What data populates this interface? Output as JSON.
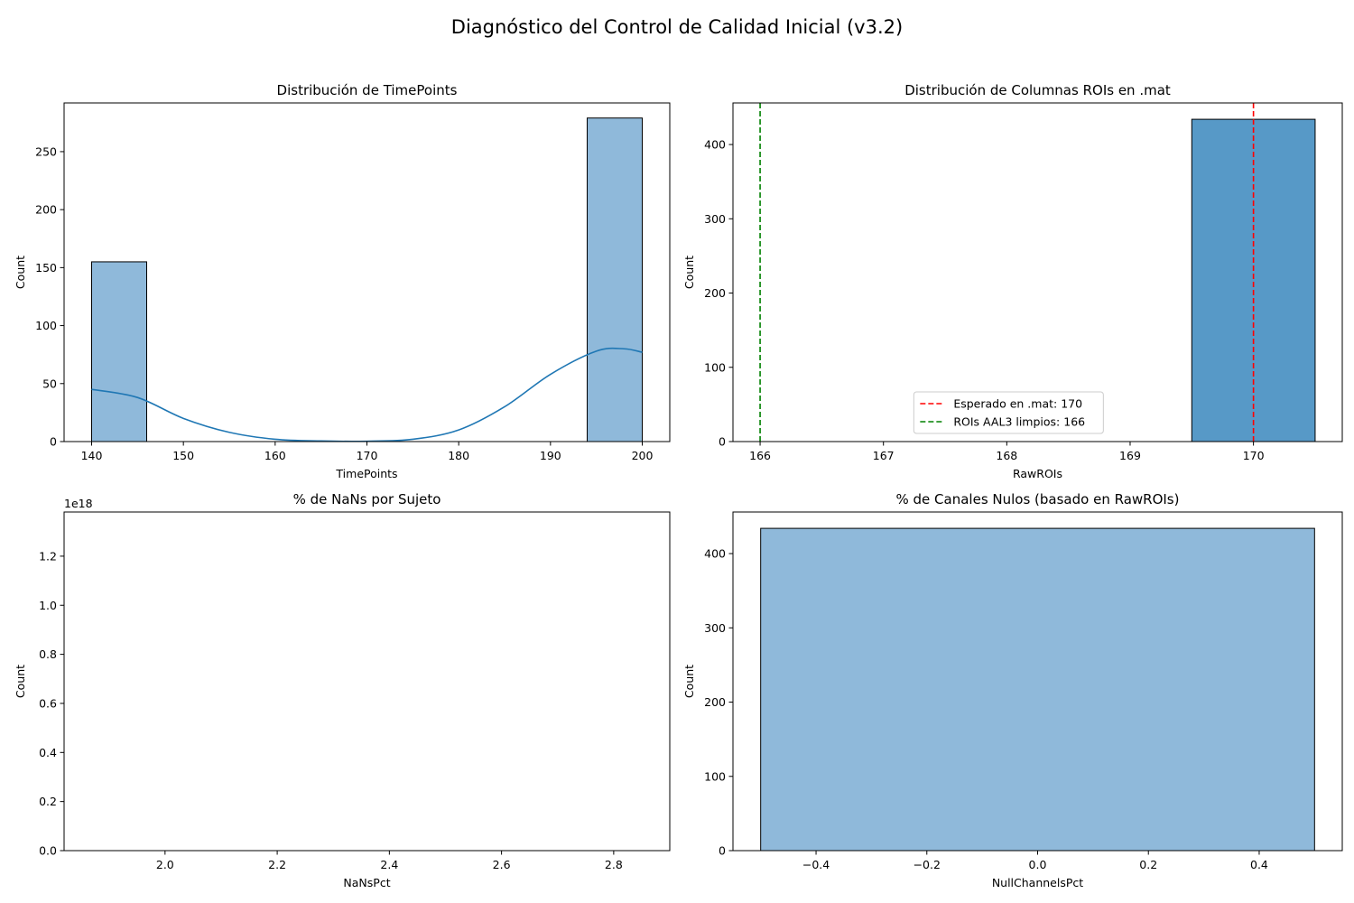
{
  "figure": {
    "title": "Diagnóstico del Control de Calidad Inicial (v3.2)"
  },
  "chart_data": [
    {
      "type": "bar",
      "title": "Distribución de TimePoints",
      "xlabel": "TimePoints",
      "ylabel": "Count",
      "xlim": [
        137,
        203
      ],
      "ylim": [
        0,
        292
      ],
      "xticks": [
        140,
        150,
        160,
        170,
        180,
        190,
        200
      ],
      "yticks": [
        0,
        50,
        100,
        150,
        200,
        250
      ],
      "bars": [
        {
          "x0": 140,
          "x1": 146,
          "value": 155
        },
        {
          "x0": 194,
          "x1": 200,
          "value": 279
        }
      ],
      "kde": {
        "x": [
          140,
          145,
          150,
          155,
          160,
          165,
          170,
          175,
          180,
          185,
          190,
          195,
          198,
          200
        ],
        "y": [
          45,
          38,
          20,
          8,
          2,
          0.5,
          0.3,
          2,
          10,
          30,
          58,
          78,
          80,
          77
        ]
      },
      "bar_color": "#8fb9da",
      "line_color": "#1f77b4"
    },
    {
      "type": "bar",
      "title": "Distribución de Columnas ROIs en .mat",
      "xlabel": "RawROIs",
      "ylabel": "Count",
      "xlim": [
        165.78,
        170.72
      ],
      "ylim": [
        0,
        456
      ],
      "xticks": [
        166,
        167,
        168,
        169,
        170
      ],
      "yticks": [
        0,
        100,
        200,
        300,
        400
      ],
      "bars": [
        {
          "x0": 169.5,
          "x1": 170.5,
          "value": 434
        }
      ],
      "bar_color": "#5799c7",
      "vlines": [
        {
          "x": 170,
          "color": "#ff0000",
          "label": "Esperado en .mat: 170"
        },
        {
          "x": 166,
          "color": "#008000",
          "label": "ROIs AAL3 limpios: 166"
        }
      ],
      "legend": "lower-center"
    },
    {
      "type": "bar",
      "title": "% de NaNs por Sujeto",
      "xlabel": "NaNsPct",
      "ylabel": "Count",
      "xlim": [
        1.82,
        2.9
      ],
      "ylim": [
        0,
        1.38
      ],
      "y_scale_label": "1e18",
      "xticks": [
        "2.0",
        "2.2",
        "2.4",
        "2.6",
        "2.8"
      ],
      "yticks": [
        "0.0",
        "0.2",
        "0.4",
        "0.6",
        "0.8",
        "1.0",
        "1.2"
      ],
      "bars": [
        {
          "x0": 1.85,
          "x1": 2.85,
          "value": 0
        }
      ],
      "bar_color": "#8fb9da"
    },
    {
      "type": "bar",
      "title": "% de Canales Nulos (basado en RawROIs)",
      "xlabel": "NullChannelsPct",
      "ylabel": "Count",
      "xlim": [
        -0.55,
        0.55
      ],
      "ylim": [
        0,
        456
      ],
      "xticks": [
        "−0.4",
        "−0.2",
        "0.0",
        "0.2",
        "0.4"
      ],
      "yticks": [
        "0",
        "100",
        "200",
        "300",
        "400"
      ],
      "bars": [
        {
          "x0": -0.5,
          "x1": 0.5,
          "value": 434
        }
      ],
      "bar_color": "#8fb9da"
    }
  ]
}
